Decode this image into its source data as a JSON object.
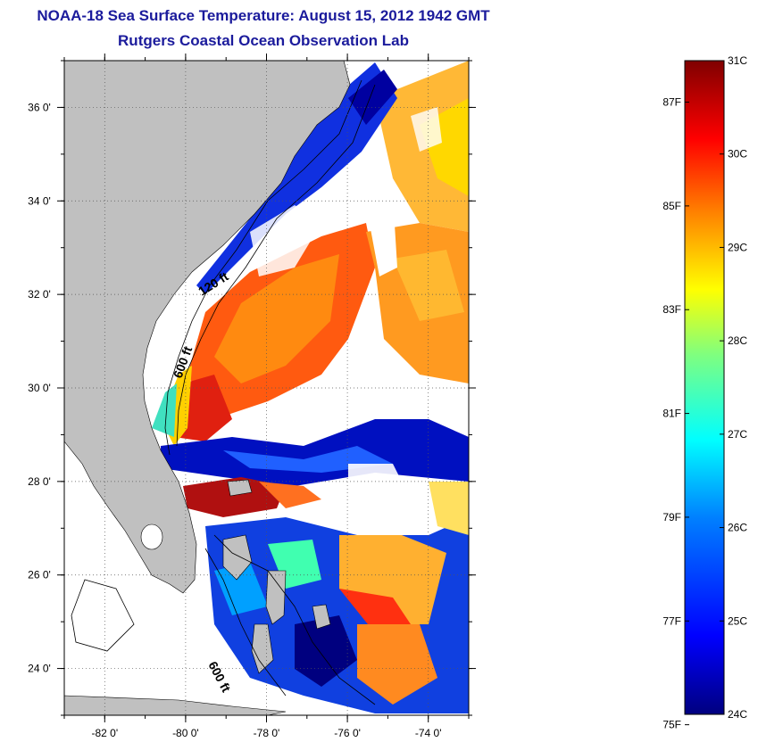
{
  "title": {
    "line1": "NOAA-18 Sea Surface Temperature:  August 15, 2012 1942 GMT",
    "line2": "Rutgers Coastal Ocean Observation Lab"
  },
  "map": {
    "lon_ticks": [
      "-82 0'",
      "-80 0'",
      "-78 0'",
      "-76 0'",
      "-74 0'"
    ],
    "lat_ticks": [
      "36 0'",
      "34 0'",
      "32 0'",
      "30 0'",
      "28 0'",
      "26 0'",
      "24 0'"
    ],
    "lon_values": [
      -82,
      -80,
      -78,
      -76,
      -74
    ],
    "lat_values": [
      36,
      34,
      32,
      30,
      28,
      26,
      24
    ],
    "lon_range": [
      -83,
      -73
    ],
    "lat_range": [
      23,
      37
    ],
    "contour_labels": [
      "120 ft",
      "600 ft",
      "600 ft"
    ],
    "land_color": "#c0c0c0",
    "cloud_color": "#ffffff"
  },
  "colorbar": {
    "celsius_labels": [
      "31C",
      "30C",
      "29C",
      "28C",
      "27C",
      "26C",
      "25C",
      "24C"
    ],
    "celsius_values": [
      31,
      30,
      29,
      28,
      27,
      26,
      25,
      24
    ],
    "fahrenheit_labels": [
      "87F",
      "85F",
      "83F",
      "81F",
      "79F",
      "77F",
      "75F"
    ],
    "fahrenheit_values": [
      87,
      85,
      83,
      81,
      79,
      77,
      75
    ],
    "range_c": [
      24,
      31
    ],
    "colors": [
      "#00007f",
      "#0000ff",
      "#007fff",
      "#00ffff",
      "#7fff7f",
      "#ffff00",
      "#ff7f00",
      "#ff0000",
      "#7f0000"
    ]
  }
}
